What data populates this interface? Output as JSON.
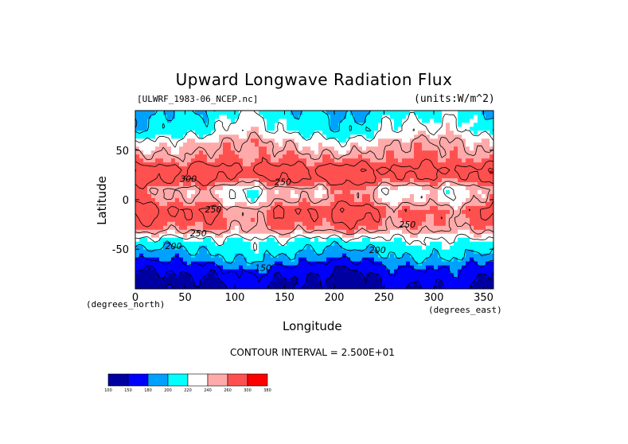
{
  "chart_data": {
    "type": "heatmap",
    "title": "Upward Longwave Radiation Flux",
    "source_label": "[ULWRF_1983-06_NCEP.nc]",
    "units_label": "(units:W/m^2)",
    "xlabel": "Longitude",
    "ylabel": "Latitude",
    "x_unit_label": "(degrees_east)",
    "y_unit_label": "(degrees_north)",
    "xlim": [
      0,
      360
    ],
    "ylim": [
      -90,
      90
    ],
    "x_ticks": [
      0,
      50,
      100,
      150,
      200,
      250,
      300,
      350
    ],
    "y_ticks": [
      50,
      0,
      -50
    ],
    "contour_interval_text": "CONTOUR INTERVAL = 2.500E+01",
    "contour_labels": [
      {
        "text": "300",
        "lon": 45,
        "lat": 18
      },
      {
        "text": "250",
        "lon": 140,
        "lat": 15
      },
      {
        "text": "250",
        "lon": 70,
        "lat": -13
      },
      {
        "text": "250",
        "lon": 55,
        "lat": -37
      },
      {
        "text": "250",
        "lon": 265,
        "lat": -28
      },
      {
        "text": "200",
        "lon": 30,
        "lat": -50
      },
      {
        "text": "200",
        "lon": 235,
        "lat": -54
      },
      {
        "text": "150",
        "lon": 120,
        "lat": -72
      }
    ],
    "colorbar": {
      "levels": [
        "100",
        "150",
        "180",
        "200",
        "220",
        "240",
        "260",
        "300",
        "380"
      ],
      "colors": [
        "#0000a0",
        "#0000ff",
        "#00a0ff",
        "#00ffff",
        "#ffffff",
        "#ffaaaa",
        "#ff5050",
        "#ff0000"
      ]
    },
    "zonal_profile": [
      {
        "lat": 90,
        "value": 205
      },
      {
        "lat": 80,
        "value": 215
      },
      {
        "lat": 70,
        "value": 218
      },
      {
        "lat": 60,
        "value": 240
      },
      {
        "lat": 50,
        "value": 250
      },
      {
        "lat": 40,
        "value": 262
      },
      {
        "lat": 30,
        "value": 285
      },
      {
        "lat": 20,
        "value": 275
      },
      {
        "lat": 10,
        "value": 240
      },
      {
        "lat": 0,
        "value": 245
      },
      {
        "lat": -10,
        "value": 272
      },
      {
        "lat": -20,
        "value": 268
      },
      {
        "lat": -30,
        "value": 255
      },
      {
        "lat": -40,
        "value": 220
      },
      {
        "lat": -50,
        "value": 205
      },
      {
        "lat": -60,
        "value": 190
      },
      {
        "lat": -70,
        "value": 165
      },
      {
        "lat": -80,
        "value": 150
      },
      {
        "lat": -90,
        "value": 145
      }
    ]
  }
}
